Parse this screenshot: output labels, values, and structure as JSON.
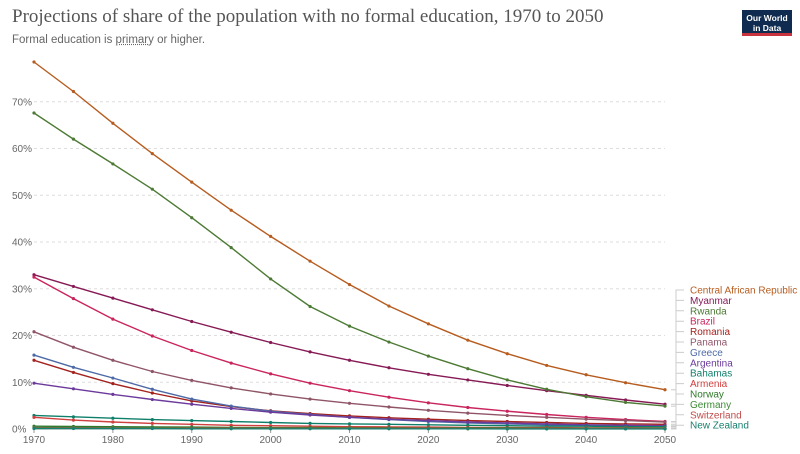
{
  "header": {
    "title": "Projections of share of the population with no formal education, 1970 to 2050",
    "subtitle_pre": "Formal education is ",
    "subtitle_link": "primary",
    "subtitle_post": " or higher.",
    "logo_line1": "Our World",
    "logo_line2": "in Data",
    "logo_color": "#0f2b4f",
    "logo_accent": "#c8333e"
  },
  "chart_data": {
    "type": "line",
    "title": "Projections of share of the population with no formal education, 1970 to 2050",
    "subtitle": "Formal education is primary or higher.",
    "xlim": [
      1970,
      2050
    ],
    "ylim": [
      0,
      80
    ],
    "x_ticks": [
      1970,
      1980,
      1990,
      2000,
      2010,
      2020,
      2030,
      2040,
      2050
    ],
    "y_ticks": [
      0,
      10,
      20,
      30,
      40,
      50,
      60,
      70
    ],
    "y_tick_labels": [
      "0%",
      "10%",
      "20%",
      "30%",
      "40%",
      "50%",
      "60%",
      "70%"
    ],
    "grid": "horizontal-dashed",
    "legend_position": "right",
    "x": [
      1970,
      1975,
      1980,
      1985,
      1990,
      1995,
      2000,
      2005,
      2010,
      2015,
      2020,
      2025,
      2030,
      2035,
      2040,
      2045,
      2050
    ],
    "series": [
      {
        "name": "Central African Republic",
        "color": "#b75c1f",
        "values": [
          78.5,
          72.2,
          65.4,
          58.9,
          52.8,
          46.8,
          41.2,
          35.9,
          30.9,
          26.3,
          22.5,
          19.0,
          16.1,
          13.6,
          11.6,
          9.9,
          8.4
        ]
      },
      {
        "name": "Myanmar",
        "color": "#861a55",
        "values": [
          33.0,
          30.5,
          28.0,
          25.5,
          23.0,
          20.7,
          18.5,
          16.5,
          14.7,
          13.1,
          11.7,
          10.5,
          9.3,
          8.2,
          7.2,
          6.2,
          5.3
        ]
      },
      {
        "name": "Rwanda",
        "color": "#4c7a34",
        "values": [
          67.6,
          62.0,
          56.7,
          51.3,
          45.2,
          38.8,
          32.1,
          26.2,
          22.0,
          18.6,
          15.6,
          12.9,
          10.5,
          8.5,
          6.9,
          5.7,
          4.9
        ]
      },
      {
        "name": "Brazil",
        "color": "#c9245d",
        "values": [
          32.5,
          27.9,
          23.5,
          19.9,
          16.8,
          14.1,
          11.8,
          9.8,
          8.2,
          6.8,
          5.6,
          4.6,
          3.8,
          3.1,
          2.5,
          2.0,
          1.6
        ]
      },
      {
        "name": "Romania",
        "color": "#a3221e",
        "values": [
          14.7,
          12.1,
          9.7,
          7.7,
          6.0,
          4.8,
          3.9,
          3.3,
          2.8,
          2.4,
          2.1,
          1.8,
          1.6,
          1.4,
          1.2,
          1.1,
          1.0
        ]
      },
      {
        "name": "Panama",
        "color": "#8f5567",
        "values": [
          20.8,
          17.5,
          14.7,
          12.3,
          10.4,
          8.8,
          7.5,
          6.4,
          5.5,
          4.7,
          4.0,
          3.4,
          2.9,
          2.5,
          2.1,
          1.8,
          1.5
        ]
      },
      {
        "name": "Greece",
        "color": "#4e6aa6",
        "values": [
          15.8,
          13.2,
          10.9,
          8.5,
          6.4,
          4.9,
          3.8,
          3.1,
          2.5,
          2.0,
          1.6,
          1.3,
          1.1,
          0.9,
          0.8,
          0.7,
          0.6
        ]
      },
      {
        "name": "Argentina",
        "color": "#6b3a9c",
        "values": [
          9.8,
          8.6,
          7.4,
          6.3,
          5.3,
          4.4,
          3.6,
          3.0,
          2.5,
          2.1,
          1.8,
          1.5,
          1.3,
          1.1,
          0.9,
          0.8,
          0.7
        ]
      },
      {
        "name": "Bahamas",
        "color": "#0f7f6a",
        "values": [
          2.9,
          2.6,
          2.3,
          2.0,
          1.8,
          1.6,
          1.4,
          1.2,
          1.1,
          1.0,
          0.9,
          0.8,
          0.7,
          0.6,
          0.6,
          0.5,
          0.5
        ]
      },
      {
        "name": "Armenia",
        "color": "#d0403f",
        "values": [
          2.5,
          1.9,
          1.5,
          1.2,
          1.0,
          0.8,
          0.7,
          0.6,
          0.5,
          0.45,
          0.4,
          0.35,
          0.3,
          0.3,
          0.25,
          0.25,
          0.2
        ]
      },
      {
        "name": "Norway",
        "color": "#2f7a2a",
        "values": [
          0.6,
          0.55,
          0.5,
          0.45,
          0.4,
          0.35,
          0.3,
          0.3,
          0.25,
          0.25,
          0.2,
          0.2,
          0.2,
          0.15,
          0.15,
          0.15,
          0.1
        ]
      },
      {
        "name": "Germany",
        "color": "#3d8b35",
        "values": [
          0.3,
          0.3,
          0.25,
          0.25,
          0.2,
          0.2,
          0.2,
          0.15,
          0.15,
          0.15,
          0.1,
          0.1,
          0.1,
          0.1,
          0.1,
          0.1,
          0.1
        ]
      },
      {
        "name": "Switzerland",
        "color": "#c14b4b",
        "values": [
          0.2,
          0.2,
          0.2,
          0.15,
          0.15,
          0.15,
          0.1,
          0.1,
          0.1,
          0.1,
          0.1,
          0.05,
          0.05,
          0.05,
          0.05,
          0.05,
          0.05
        ]
      },
      {
        "name": "New Zealand",
        "color": "#18806f",
        "values": [
          0.1,
          0.1,
          0.1,
          0.1,
          0.05,
          0.05,
          0.05,
          0.05,
          0.05,
          0.05,
          0.05,
          0.05,
          0.03,
          0.03,
          0.03,
          0.03,
          0.03
        ]
      }
    ]
  }
}
